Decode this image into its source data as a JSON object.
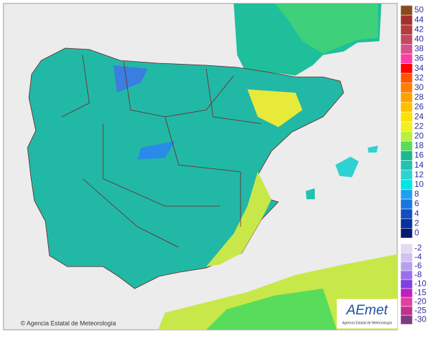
{
  "legend": {
    "upper": [
      {
        "label": 50,
        "color": "#8b4a1c"
      },
      {
        "label": 44,
        "color": "#a3302e"
      },
      {
        "label": 42,
        "color": "#b33c3c"
      },
      {
        "label": 40,
        "color": "#c24a5e"
      },
      {
        "label": 38,
        "color": "#d8508c"
      },
      {
        "label": 36,
        "color": "#ff3ca8"
      },
      {
        "label": 34,
        "color": "#ff0000"
      },
      {
        "label": 32,
        "color": "#ff5500"
      },
      {
        "label": 30,
        "color": "#ff7f00"
      },
      {
        "label": 28,
        "color": "#ffa000"
      },
      {
        "label": 26,
        "color": "#ffc000"
      },
      {
        "label": 24,
        "color": "#ffe000"
      },
      {
        "label": 22,
        "color": "#f0f020"
      },
      {
        "label": 20,
        "color": "#b8f040"
      },
      {
        "label": 18,
        "color": "#58dc5c"
      },
      {
        "label": 16,
        "color": "#1cb890"
      },
      {
        "label": 14,
        "color": "#22c2b0"
      },
      {
        "label": 12,
        "color": "#2ed2d2"
      },
      {
        "label": 10,
        "color": "#00e4e4"
      },
      {
        "label": 8,
        "color": "#1ea0f0"
      },
      {
        "label": 6,
        "color": "#1a76de"
      },
      {
        "label": 4,
        "color": "#124ec0"
      },
      {
        "label": 2,
        "color": "#0a309e"
      },
      {
        "label": 0,
        "color": "#061a6e"
      }
    ],
    "lower": [
      {
        "label": -2,
        "color": "#e2daf2"
      },
      {
        "label": -4,
        "color": "#d2c2f2"
      },
      {
        "label": -6,
        "color": "#b8a0f0"
      },
      {
        "label": -8,
        "color": "#9a70e8"
      },
      {
        "label": -10,
        "color": "#8040e0"
      },
      {
        "label": -15,
        "color": "#c020c0"
      },
      {
        "label": -20,
        "color": "#e040a0"
      },
      {
        "label": -25,
        "color": "#c03090"
      },
      {
        "label": -30,
        "color": "#803a80"
      }
    ]
  },
  "copyright": "© Agencia Estatal de Meteorología",
  "logo": {
    "name": "AEmet",
    "subtitle": "Agencia Estatal de Meteorología"
  }
}
